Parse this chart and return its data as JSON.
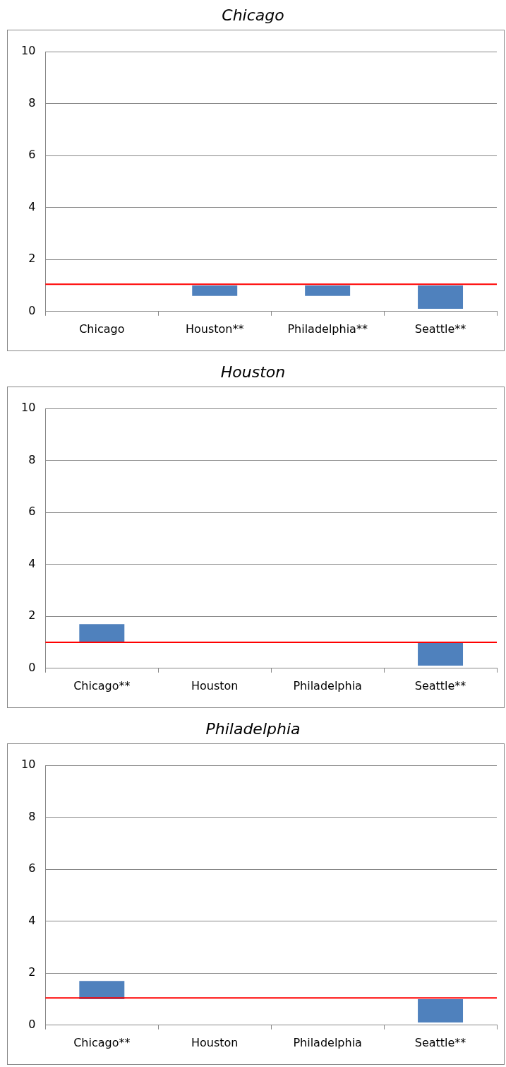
{
  "chart_data": [
    {
      "type": "bar",
      "title": "Chicago",
      "categories": [
        "Chicago",
        "Houston**",
        "Philadelphia**",
        "Seattle**"
      ],
      "values": [
        null,
        -0.4,
        -0.4,
        -0.9
      ],
      "base": [
        null,
        1,
        1,
        1
      ],
      "color": "#4f81bd",
      "ylim": [
        0,
        10
      ],
      "yticks": [
        0,
        2,
        4,
        6,
        8,
        10
      ],
      "grid": "y",
      "ref_lines": [
        {
          "axis": "y",
          "value": 1.05,
          "color": "#ff0000"
        }
      ]
    },
    {
      "type": "bar",
      "title": "Houston",
      "categories": [
        "Chicago**",
        "Houston",
        "Philadelphia",
        "Seattle**"
      ],
      "values": [
        0.7,
        null,
        null,
        -0.9
      ],
      "base": [
        1,
        null,
        null,
        1
      ],
      "color": "#4f81bd",
      "ylim": [
        0,
        10
      ],
      "yticks": [
        0,
        2,
        4,
        6,
        8,
        10
      ],
      "grid": "y",
      "ref_lines": [
        {
          "axis": "y",
          "value": 1,
          "color": "#ff0000"
        }
      ]
    },
    {
      "type": "bar",
      "title": "Philadelphia",
      "categories": [
        "Chicago**",
        "Houston",
        "Philadelphia",
        "Seattle**"
      ],
      "values": [
        0.7,
        null,
        null,
        -0.9
      ],
      "base": [
        1,
        null,
        null,
        1
      ],
      "color": "#4f81bd",
      "ylim": [
        0,
        10
      ],
      "yticks": [
        0,
        2,
        4,
        6,
        8,
        10
      ],
      "grid": "y",
      "ref_lines": [
        {
          "axis": "y",
          "value": 1.05,
          "color": "#ff0000"
        }
      ]
    }
  ]
}
